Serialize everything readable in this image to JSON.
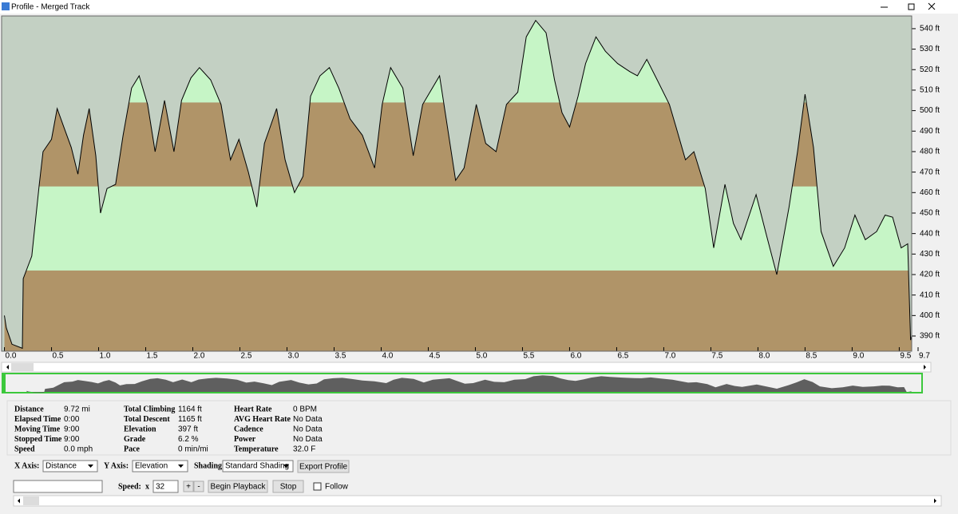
{
  "window": {
    "title": "Profile - Merged Track"
  },
  "chart_data": {
    "type": "area",
    "x": [
      0.0,
      0.02,
      0.08,
      0.19,
      0.2,
      0.29,
      0.37,
      0.41,
      0.5,
      0.56,
      0.63,
      0.71,
      0.78,
      0.84,
      0.9,
      0.97,
      1.02,
      1.09,
      1.18,
      1.26,
      1.35,
      1.43,
      1.52,
      1.6,
      1.7,
      1.8,
      1.88,
      1.98,
      2.07,
      2.19,
      2.3,
      2.4,
      2.49,
      2.59,
      2.68,
      2.76,
      2.89,
      2.98,
      3.08,
      3.17,
      3.25,
      3.35,
      3.45,
      3.55,
      3.67,
      3.8,
      3.93,
      4.01,
      4.1,
      4.23,
      4.34,
      4.44,
      4.62,
      4.69,
      4.79,
      4.88,
      5.01,
      5.11,
      5.22,
      5.33,
      5.45,
      5.54,
      5.64,
      5.75,
      5.84,
      5.92,
      6.0,
      6.09,
      6.17,
      6.28,
      6.38,
      6.51,
      6.64,
      6.72,
      6.82,
      6.93,
      7.06,
      7.13,
      7.23,
      7.32,
      7.44,
      7.53,
      7.65,
      7.74,
      7.82,
      7.98,
      8.08,
      8.2,
      8.33,
      8.42,
      8.5,
      8.59,
      8.67,
      8.8,
      8.92,
      9.03,
      9.14,
      9.26,
      9.35,
      9.43,
      9.52,
      9.59,
      9.62,
      9.67
    ],
    "values": [
      400,
      394,
      386,
      384,
      418,
      429,
      464,
      480,
      486,
      501,
      492,
      482,
      469,
      488,
      501,
      478,
      450,
      462,
      464,
      488,
      511,
      517,
      503,
      480,
      505,
      480,
      505,
      516,
      521,
      515,
      503,
      476,
      486,
      470,
      453,
      484,
      501,
      476,
      460,
      468,
      507,
      517,
      521,
      511,
      496,
      488,
      472,
      503,
      521,
      511,
      478,
      503,
      517,
      496,
      466,
      472,
      503,
      484,
      480,
      503,
      509,
      536,
      544,
      538,
      515,
      499,
      492,
      507,
      523,
      536,
      529,
      523,
      519,
      517,
      525,
      515,
      503,
      492,
      476,
      480,
      462,
      433,
      464,
      445,
      437,
      459,
      441,
      420,
      453,
      480,
      508,
      482,
      441,
      424,
      433,
      449,
      437,
      441,
      449,
      448,
      433,
      435,
      388,
      396
    ],
    "xlim": [
      -0.03,
      9.7
    ],
    "ylim": [
      382.6,
      546.2
    ],
    "xticks": [
      {
        "value": 0,
        "label": "0.0"
      },
      {
        "value": 0.5,
        "label": "0.5"
      },
      {
        "value": 1,
        "label": "1.0"
      },
      {
        "value": 1.5,
        "label": "1.5"
      },
      {
        "value": 2,
        "label": "2.0"
      },
      {
        "value": 2.5,
        "label": "2.5"
      },
      {
        "value": 3,
        "label": "3.0"
      },
      {
        "value": 3.5,
        "label": "3.5"
      },
      {
        "value": 4,
        "label": "4.0"
      },
      {
        "value": 4.5,
        "label": "4.5"
      },
      {
        "value": 5,
        "label": "5.0"
      },
      {
        "value": 5.5,
        "label": "5.5"
      },
      {
        "value": 6,
        "label": "6.0"
      },
      {
        "value": 6.5,
        "label": "6.5"
      },
      {
        "value": 7,
        "label": "7.0"
      },
      {
        "value": 7.5,
        "label": "7.5"
      },
      {
        "value": 8,
        "label": "8.0"
      },
      {
        "value": 8.5,
        "label": "8.5"
      },
      {
        "value": 9,
        "label": "9.0"
      },
      {
        "value": 9.5,
        "label": "9.5"
      },
      9.7
    ],
    "yticks": [
      {
        "value": 390,
        "label": "390 ft"
      },
      {
        "value": 400,
        "label": "400 ft"
      },
      {
        "value": 410,
        "label": "410 ft"
      },
      {
        "value": 420,
        "label": "420 ft"
      },
      {
        "value": 430,
        "label": "430 ft"
      },
      {
        "value": 440,
        "label": "440 ft"
      },
      {
        "value": 450,
        "label": "450 ft"
      },
      {
        "value": 460,
        "label": "460 ft"
      },
      {
        "value": 470,
        "label": "470 ft"
      },
      {
        "value": 480,
        "label": "480 ft"
      },
      {
        "value": 490,
        "label": "490 ft"
      },
      {
        "value": 500,
        "label": "500 ft"
      },
      {
        "value": 510,
        "label": "510 ft"
      },
      {
        "value": 520,
        "label": "520 ft"
      },
      {
        "value": 530,
        "label": "530 ft"
      },
      {
        "value": 540,
        "label": "540 ft"
      }
    ],
    "background": "#c3d0c3",
    "shading_levels": [
      422,
      463,
      504
    ],
    "shading_colors": [
      "#b09468",
      "#c6f5c6"
    ]
  },
  "stats": [
    [
      {
        "label": "Distance",
        "value": "9.72 mi"
      },
      {
        "label": "Elapsed Time",
        "value": "0:00"
      },
      {
        "label": "Moving Time",
        "value": "9:00"
      },
      {
        "label": "Stopped Time",
        "value": "9:00"
      },
      {
        "label": "Speed",
        "value": "0.0 mph"
      }
    ],
    [
      {
        "label": "Total Climbing",
        "value": "1164 ft"
      },
      {
        "label": "Total Descent",
        "value": "1165 ft"
      },
      {
        "label": "Elevation",
        "value": "397 ft"
      },
      {
        "label": "Grade",
        "value": "6.2 %"
      },
      {
        "label": "Pace",
        "value": "0 min/mi"
      }
    ],
    [
      {
        "label": "Heart Rate",
        "value": "0 BPM"
      },
      {
        "label": "AVG Heart Rate",
        "value": "No Data"
      },
      {
        "label": "Cadence",
        "value": "No Data"
      },
      {
        "label": "Power",
        "value": "No Data"
      },
      {
        "label": "Temperature",
        "value": "32.0 F"
      }
    ]
  ],
  "controls": {
    "x_axis_label": "X Axis:",
    "x_axis_value": "Distance",
    "y_axis_label": "Y Axis:",
    "y_axis_value": "Elevation",
    "shading_label": "Shading:",
    "shading_value": "Standard Shading",
    "export": "Export Profile",
    "speed_label": "Speed:",
    "speed_x": "x",
    "speed_value": "32",
    "plus": "+",
    "minus": "-",
    "begin": "Begin Playback",
    "stop": "Stop",
    "follow": "Follow"
  }
}
